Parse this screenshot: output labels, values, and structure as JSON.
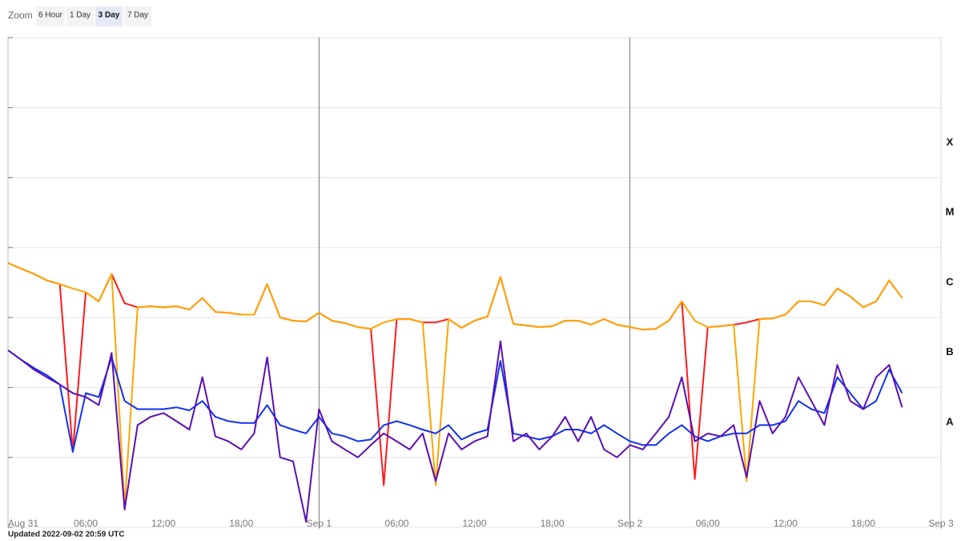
{
  "zoom": {
    "label": "Zoom",
    "options": [
      "6 Hour",
      "1 Day",
      "3 Day",
      "7 Day"
    ],
    "active": 2
  },
  "footer": "Updated 2022-09-02 20:59 UTC",
  "chart_data": {
    "type": "line",
    "log_y": true,
    "grid": true,
    "xlim": [
      0,
      72
    ],
    "xticks": [
      {
        "value": 0,
        "label": "Aug 31"
      },
      {
        "value": 6,
        "label": "06:00"
      },
      {
        "value": 12,
        "label": "12:00"
      },
      {
        "value": 18,
        "label": "18:00"
      },
      {
        "value": 24,
        "label": "Sep 1"
      },
      {
        "value": 30,
        "label": "06:00"
      },
      {
        "value": 36,
        "label": "12:00"
      },
      {
        "value": 42,
        "label": "18:00"
      },
      {
        "value": 48,
        "label": "Sep 2"
      },
      {
        "value": 54,
        "label": "06:00"
      },
      {
        "value": 60,
        "label": "12:00"
      },
      {
        "value": 66,
        "label": "18:00"
      },
      {
        "value": 72,
        "label": "Sep 3"
      }
    ],
    "ylim": [
      1e-09,
      0.01
    ],
    "yticks": [
      1e-09,
      1e-08,
      1e-07,
      1e-06,
      1e-05,
      0.0001,
      0.001,
      0.01
    ],
    "classes": [
      {
        "label": "X",
        "value": 0.0001
      },
      {
        "label": "M",
        "value": 1e-05
      },
      {
        "label": "C",
        "value": 1e-06
      },
      {
        "label": "B",
        "value": 1e-07
      },
      {
        "label": "A",
        "value": 1e-08
      }
    ],
    "x": [
      0,
      1,
      2,
      3,
      4,
      5,
      6,
      7,
      8,
      9,
      10,
      11,
      12,
      13,
      14,
      15,
      16,
      17,
      18,
      19,
      20,
      21,
      22,
      23,
      24,
      25,
      26,
      27,
      28,
      29,
      30,
      31,
      32,
      33,
      34,
      35,
      36,
      37,
      38,
      39,
      40,
      41,
      42,
      43,
      44,
      45,
      46,
      47,
      48,
      49,
      50,
      51,
      52,
      53,
      54,
      55,
      56,
      57,
      58,
      59,
      60,
      61,
      62,
      63,
      64,
      65,
      66,
      67,
      68,
      69
    ],
    "series": [
      {
        "color": "#ff1a1a",
        "values": [
          6e-06,
          5e-06,
          4.2e-06,
          3.4e-06,
          3e-06,
          1.2e-08,
          2.3e-06,
          1.7e-06,
          4.2e-06,
          1.6e-06,
          1.4e-06,
          1.45e-06,
          1.4e-06,
          1.45e-06,
          1.3e-06,
          1.9e-06,
          1.2e-06,
          1.17e-06,
          1.1e-06,
          1.1e-06,
          3e-06,
          1e-06,
          9e-07,
          8.8e-07,
          1.17e-06,
          9e-07,
          8.3e-07,
          7.3e-07,
          6.9e-07,
          4e-09,
          9.5e-07,
          9.5e-07,
          8.5e-07,
          8.5e-07,
          9.5e-07,
          7.1e-07,
          9e-07,
          1.03e-06,
          3.8e-06,
          8.1e-07,
          7.7e-07,
          7.3e-07,
          7.5e-07,
          9e-07,
          9e-07,
          7.9e-07,
          9.5e-07,
          7.9e-07,
          7.3e-07,
          6.7e-07,
          6.9e-07,
          9e-07,
          1.7e-06,
          4.9e-09,
          7.3e-07,
          7.5e-07,
          7.9e-07,
          8.5e-07,
          9.5e-07,
          9.7e-07,
          1.1e-06,
          1.7e-06,
          1.7e-06,
          1.5e-06,
          2.6e-06,
          2e-06,
          1.4e-06,
          1.7e-06,
          3.4e-06,
          1.9e-06
        ]
      },
      {
        "color": "#ffa500",
        "values": [
          6e-06,
          5e-06,
          4.2e-06,
          3.4e-06,
          3e-06,
          2.6e-06,
          2.3e-06,
          1.7e-06,
          4.2e-06,
          2e-09,
          1.4e-06,
          1.45e-06,
          1.4e-06,
          1.45e-06,
          1.3e-06,
          1.9e-06,
          1.2e-06,
          1.17e-06,
          1.1e-06,
          1.1e-06,
          3e-06,
          1e-06,
          9e-07,
          8.8e-07,
          1.17e-06,
          9e-07,
          8.3e-07,
          7.3e-07,
          6.9e-07,
          8.5e-07,
          9.5e-07,
          9.5e-07,
          8.5e-07,
          4e-09,
          9.5e-07,
          7.1e-07,
          9e-07,
          1.03e-06,
          3.8e-06,
          8.1e-07,
          7.7e-07,
          7.3e-07,
          7.5e-07,
          9e-07,
          9e-07,
          7.9e-07,
          9.5e-07,
          7.9e-07,
          7.3e-07,
          6.7e-07,
          6.9e-07,
          9e-07,
          1.7e-06,
          9e-07,
          7.3e-07,
          7.5e-07,
          7.9e-07,
          4.6e-09,
          9.5e-07,
          9.7e-07,
          1.1e-06,
          1.7e-06,
          1.7e-06,
          1.5e-06,
          2.6e-06,
          2e-06,
          1.4e-06,
          1.7e-06,
          3.4e-06,
          1.9e-06
        ]
      },
      {
        "color": "#1133ee",
        "values": [
          3.4e-07,
          2.5e-07,
          1.9e-07,
          1.5e-07,
          1.1e-07,
          1.2e-08,
          8.3e-08,
          7.3e-08,
          2.7e-07,
          6.4e-08,
          4.9e-08,
          4.9e-08,
          4.9e-08,
          5.2e-08,
          4.7e-08,
          6.4e-08,
          3.8e-08,
          3.3e-08,
          3.1e-08,
          3.1e-08,
          5.6e-08,
          2.9e-08,
          2.5e-08,
          2.2e-08,
          3.8e-08,
          2.2e-08,
          2e-08,
          1.7e-08,
          1.8e-08,
          2.9e-08,
          3.3e-08,
          2.9e-08,
          2.5e-08,
          2.2e-08,
          2.9e-08,
          1.8e-08,
          2.2e-08,
          2.5e-08,
          2.4e-07,
          2.2e-08,
          2e-08,
          1.8e-08,
          2e-08,
          2.5e-08,
          2.5e-08,
          2.2e-08,
          2.9e-08,
          2.2e-08,
          1.7e-08,
          1.5e-08,
          1.5e-08,
          2.2e-08,
          2.9e-08,
          2e-08,
          1.7e-08,
          2e-08,
          2.2e-08,
          2.2e-08,
          2.9e-08,
          2.9e-08,
          3.3e-08,
          6.4e-08,
          4.9e-08,
          4.3e-08,
          1.4e-07,
          8.3e-08,
          4.9e-08,
          6.4e-08,
          1.8e-07,
          8.3e-08
        ]
      },
      {
        "color": "#5a0fb4",
        "values": [
          3.4e-07,
          2.5e-07,
          1.8e-07,
          1.4e-07,
          1.1e-07,
          8.3e-08,
          7.3e-08,
          5.6e-08,
          3.1e-07,
          1.8e-09,
          2.9e-08,
          3.8e-08,
          4.3e-08,
          3.3e-08,
          2.5e-08,
          1.4e-07,
          2e-08,
          1.7e-08,
          1.3e-08,
          2.2e-08,
          2.7e-07,
          1e-08,
          8.8e-09,
          1.2e-09,
          4.9e-08,
          1.7e-08,
          1.3e-08,
          1e-08,
          1.5e-08,
          2.2e-08,
          1.7e-08,
          1.3e-08,
          2.2e-08,
          4.6e-09,
          2.2e-08,
          1.3e-08,
          1.7e-08,
          2e-08,
          4.6e-07,
          1.7e-08,
          2.2e-08,
          1.3e-08,
          2e-08,
          3.8e-08,
          1.7e-08,
          3.8e-08,
          1.3e-08,
          1e-08,
          1.5e-08,
          1.3e-08,
          2.2e-08,
          3.8e-08,
          1.4e-07,
          1.7e-08,
          2.2e-08,
          2e-08,
          2.9e-08,
          5.2e-09,
          6.4e-08,
          2.2e-08,
          3.8e-08,
          1.4e-07,
          6.4e-08,
          2.9e-08,
          2.1e-07,
          6.4e-08,
          4.9e-08,
          1.4e-07,
          2.1e-07,
          5.2e-08
        ]
      }
    ]
  }
}
